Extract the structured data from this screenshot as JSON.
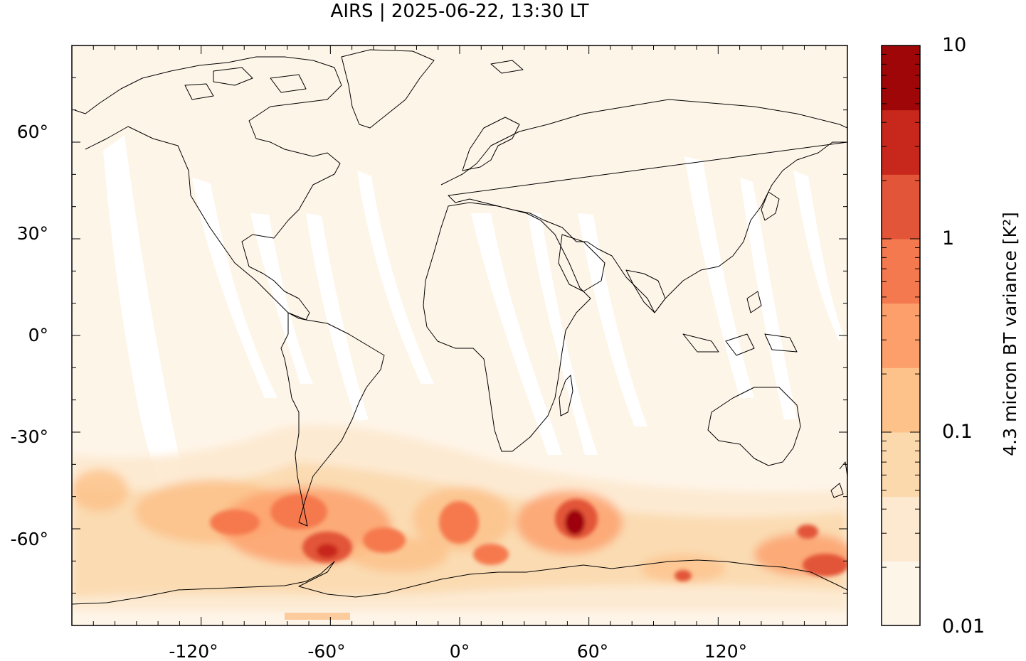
{
  "map": {
    "title": "AIRS | 2025-06-22, 13:30 LT",
    "projection": "equirectangular",
    "lon_range": [
      -180,
      180
    ],
    "lat_range": [
      -90,
      90
    ],
    "background_color": "#fef5e9",
    "swath_gap_color": "#ffffff",
    "coastline_color": "#000000",
    "x_ticks": [
      {
        "value": -120,
        "label": "-120°"
      },
      {
        "value": -60,
        "label": "-60°"
      },
      {
        "value": 0,
        "label": "0°"
      },
      {
        "value": 60,
        "label": "60°"
      },
      {
        "value": 120,
        "label": "120°"
      }
    ],
    "y_ticks": [
      {
        "value": 60,
        "label": "60°"
      },
      {
        "value": 30,
        "label": "30°"
      },
      {
        "value": 0,
        "label": "0°"
      },
      {
        "value": -30,
        "label": "-30°"
      },
      {
        "value": -60,
        "label": "-60°"
      }
    ],
    "colorbar": {
      "label": "4.3 micron BT variance [K²]",
      "scale": "log",
      "range": [
        0.01,
        10
      ],
      "tick_labels": [
        {
          "value": 10,
          "label": "10"
        },
        {
          "value": 1,
          "label": "1"
        },
        {
          "value": 0.1,
          "label": "0.1"
        },
        {
          "value": 0.01,
          "label": "0.01"
        }
      ],
      "bands": [
        "#fef5e9",
        "#fde9cf",
        "#fcd9ad",
        "#fdc28a",
        "#fc9f6a",
        "#f5794e",
        "#e25538",
        "#c8281c",
        "#9e0607"
      ]
    }
  }
}
